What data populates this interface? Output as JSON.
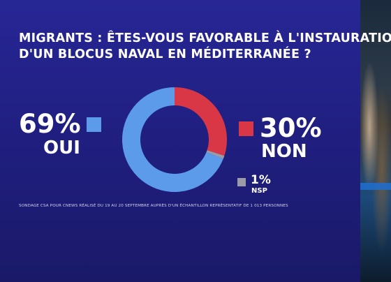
{
  "title_lines": [
    "MIGRANTS : ÊTES-VOUS FAVORABLE À L'INSTAURATION",
    "D'UN BLOCUS NAVAL EN MÉDITERRANÉE ?"
  ],
  "source": "SONDAGE CSA POUR CNEWS RÉALISÉ DU 19 AU 20 SEPTEMBRE AUPRÈS D'UN ÉCHANTILLON REPRÉSENTATIF DE 1 013 PERSONNES",
  "chart_data": {
    "type": "pie",
    "style": "donut",
    "slices": [
      {
        "label": "OUI",
        "value": 69,
        "display": "69%",
        "color": "#5b9bea"
      },
      {
        "label": "NON",
        "value": 30,
        "display": "30%",
        "color": "#d93745"
      },
      {
        "label": "NSP",
        "value": 1,
        "display": "1%",
        "color": "#9a9aa8"
      }
    ]
  }
}
